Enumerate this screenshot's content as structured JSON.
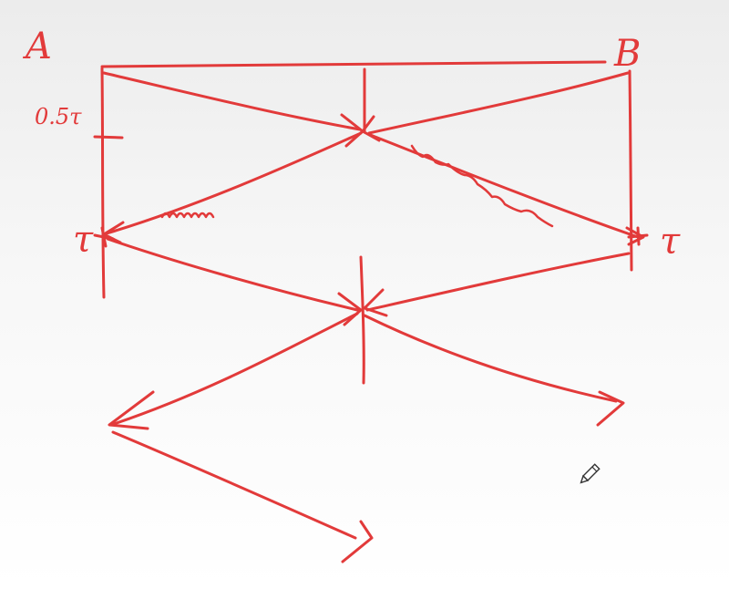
{
  "diagram": {
    "ink_color": "#e23a3a",
    "labels": {
      "point_a": "A",
      "point_b": "B",
      "tau_left": "τ",
      "tau_right": "τ",
      "half_tau": "0.5τ"
    },
    "cursor_icon": "pencil-icon"
  }
}
